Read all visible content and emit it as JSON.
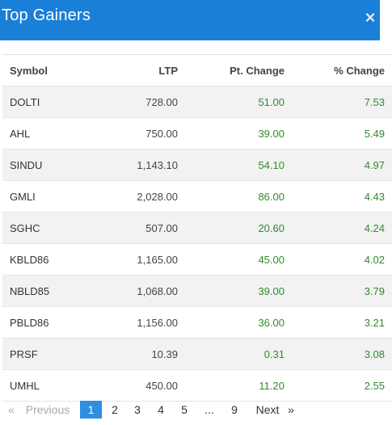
{
  "header": {
    "title": "Top Gainers",
    "close_glyph": "×",
    "close_icon": "close-icon"
  },
  "table": {
    "columns": {
      "symbol": "Symbol",
      "ltp": "LTP",
      "pt_change": "Pt. Change",
      "pct_change": "% Change"
    },
    "rows": [
      {
        "symbol": "DOLTI",
        "ltp": "728.00",
        "pt_change": "51.00",
        "pct_change": "7.53"
      },
      {
        "symbol": "AHL",
        "ltp": "750.00",
        "pt_change": "39.00",
        "pct_change": "5.49"
      },
      {
        "symbol": "SINDU",
        "ltp": "1,143.10",
        "pt_change": "54.10",
        "pct_change": "4.97"
      },
      {
        "symbol": "GMLI",
        "ltp": "2,028.00",
        "pt_change": "86.00",
        "pct_change": "4.43"
      },
      {
        "symbol": "SGHC",
        "ltp": "507.00",
        "pt_change": "20.60",
        "pct_change": "4.24"
      },
      {
        "symbol": "KBLD86",
        "ltp": "1,165.00",
        "pt_change": "45.00",
        "pct_change": "4.02"
      },
      {
        "symbol": "NBLD85",
        "ltp": "1,068.00",
        "pt_change": "39.00",
        "pct_change": "3.79"
      },
      {
        "symbol": "PBLD86",
        "ltp": "1,156.00",
        "pt_change": "36.00",
        "pct_change": "3.21"
      },
      {
        "symbol": "PRSF",
        "ltp": "10.39",
        "pt_change": "0.31",
        "pct_change": "3.08"
      },
      {
        "symbol": "UMHL",
        "ltp": "450.00",
        "pt_change": "11.20",
        "pct_change": "2.55"
      }
    ]
  },
  "pagination": {
    "prev_arrow": "«",
    "previous": "Previous",
    "pages": [
      "1",
      "2",
      "3",
      "4",
      "5"
    ],
    "ellipsis": "...",
    "last_page": "9",
    "next": "Next",
    "next_arrow": "»",
    "current": "1"
  },
  "colors": {
    "header_bg": "#1a7fd6",
    "positive": "#2e8b2e",
    "active_page": "#2f8ee0",
    "row_stripe": "#f2f2f2"
  }
}
